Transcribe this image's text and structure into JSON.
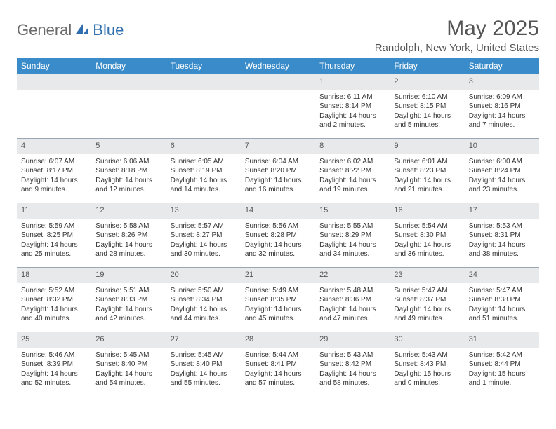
{
  "logo": {
    "text1": "General",
    "text2": "Blue"
  },
  "title": "May 2025",
  "location": "Randolph, New York, United States",
  "colors": {
    "header_bg": "#3a8bc9",
    "header_text": "#ffffff",
    "daynum_bg": "#e7e9eb",
    "border": "#9aa7b3",
    "logo_gray": "#6a6a6a",
    "logo_blue": "#2f6fb0"
  },
  "dayNames": [
    "Sunday",
    "Monday",
    "Tuesday",
    "Wednesday",
    "Thursday",
    "Friday",
    "Saturday"
  ],
  "startOffset": 4,
  "days": [
    {
      "n": 1,
      "sr": "6:11 AM",
      "ss": "8:14 PM",
      "dl": "14 hours and 2 minutes."
    },
    {
      "n": 2,
      "sr": "6:10 AM",
      "ss": "8:15 PM",
      "dl": "14 hours and 5 minutes."
    },
    {
      "n": 3,
      "sr": "6:09 AM",
      "ss": "8:16 PM",
      "dl": "14 hours and 7 minutes."
    },
    {
      "n": 4,
      "sr": "6:07 AM",
      "ss": "8:17 PM",
      "dl": "14 hours and 9 minutes."
    },
    {
      "n": 5,
      "sr": "6:06 AM",
      "ss": "8:18 PM",
      "dl": "14 hours and 12 minutes."
    },
    {
      "n": 6,
      "sr": "6:05 AM",
      "ss": "8:19 PM",
      "dl": "14 hours and 14 minutes."
    },
    {
      "n": 7,
      "sr": "6:04 AM",
      "ss": "8:20 PM",
      "dl": "14 hours and 16 minutes."
    },
    {
      "n": 8,
      "sr": "6:02 AM",
      "ss": "8:22 PM",
      "dl": "14 hours and 19 minutes."
    },
    {
      "n": 9,
      "sr": "6:01 AM",
      "ss": "8:23 PM",
      "dl": "14 hours and 21 minutes."
    },
    {
      "n": 10,
      "sr": "6:00 AM",
      "ss": "8:24 PM",
      "dl": "14 hours and 23 minutes."
    },
    {
      "n": 11,
      "sr": "5:59 AM",
      "ss": "8:25 PM",
      "dl": "14 hours and 25 minutes."
    },
    {
      "n": 12,
      "sr": "5:58 AM",
      "ss": "8:26 PM",
      "dl": "14 hours and 28 minutes."
    },
    {
      "n": 13,
      "sr": "5:57 AM",
      "ss": "8:27 PM",
      "dl": "14 hours and 30 minutes."
    },
    {
      "n": 14,
      "sr": "5:56 AM",
      "ss": "8:28 PM",
      "dl": "14 hours and 32 minutes."
    },
    {
      "n": 15,
      "sr": "5:55 AM",
      "ss": "8:29 PM",
      "dl": "14 hours and 34 minutes."
    },
    {
      "n": 16,
      "sr": "5:54 AM",
      "ss": "8:30 PM",
      "dl": "14 hours and 36 minutes."
    },
    {
      "n": 17,
      "sr": "5:53 AM",
      "ss": "8:31 PM",
      "dl": "14 hours and 38 minutes."
    },
    {
      "n": 18,
      "sr": "5:52 AM",
      "ss": "8:32 PM",
      "dl": "14 hours and 40 minutes."
    },
    {
      "n": 19,
      "sr": "5:51 AM",
      "ss": "8:33 PM",
      "dl": "14 hours and 42 minutes."
    },
    {
      "n": 20,
      "sr": "5:50 AM",
      "ss": "8:34 PM",
      "dl": "14 hours and 44 minutes."
    },
    {
      "n": 21,
      "sr": "5:49 AM",
      "ss": "8:35 PM",
      "dl": "14 hours and 45 minutes."
    },
    {
      "n": 22,
      "sr": "5:48 AM",
      "ss": "8:36 PM",
      "dl": "14 hours and 47 minutes."
    },
    {
      "n": 23,
      "sr": "5:47 AM",
      "ss": "8:37 PM",
      "dl": "14 hours and 49 minutes."
    },
    {
      "n": 24,
      "sr": "5:47 AM",
      "ss": "8:38 PM",
      "dl": "14 hours and 51 minutes."
    },
    {
      "n": 25,
      "sr": "5:46 AM",
      "ss": "8:39 PM",
      "dl": "14 hours and 52 minutes."
    },
    {
      "n": 26,
      "sr": "5:45 AM",
      "ss": "8:40 PM",
      "dl": "14 hours and 54 minutes."
    },
    {
      "n": 27,
      "sr": "5:45 AM",
      "ss": "8:40 PM",
      "dl": "14 hours and 55 minutes."
    },
    {
      "n": 28,
      "sr": "5:44 AM",
      "ss": "8:41 PM",
      "dl": "14 hours and 57 minutes."
    },
    {
      "n": 29,
      "sr": "5:43 AM",
      "ss": "8:42 PM",
      "dl": "14 hours and 58 minutes."
    },
    {
      "n": 30,
      "sr": "5:43 AM",
      "ss": "8:43 PM",
      "dl": "15 hours and 0 minutes."
    },
    {
      "n": 31,
      "sr": "5:42 AM",
      "ss": "8:44 PM",
      "dl": "15 hours and 1 minute."
    }
  ],
  "labels": {
    "sunrise": "Sunrise:",
    "sunset": "Sunset:",
    "daylight": "Daylight:"
  }
}
